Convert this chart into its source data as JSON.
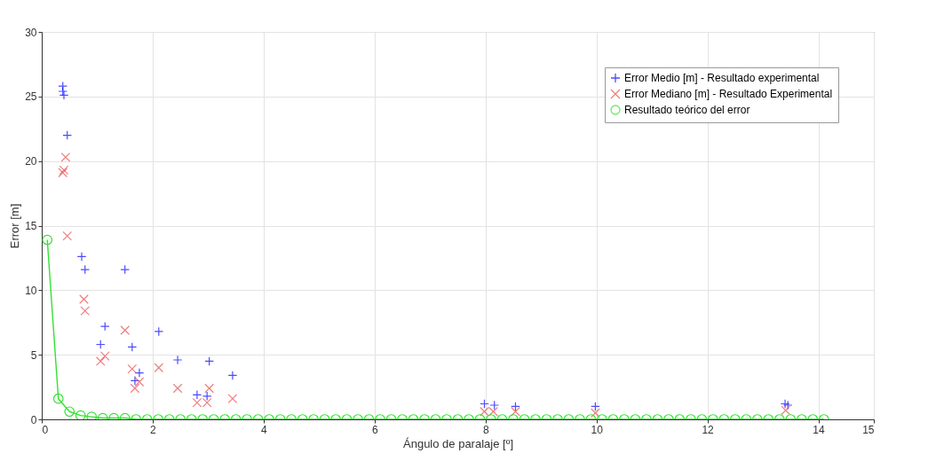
{
  "chart_data": {
    "type": "scatter",
    "xlabel": "Ángulo de paralaje [º]",
    "ylabel": "Error [m]",
    "xlim": [
      0,
      15
    ],
    "xticks": [
      0,
      2,
      4,
      6,
      8,
      10,
      12,
      14,
      15
    ],
    "ylim": [
      0,
      30
    ],
    "yticks": [
      0,
      5,
      10,
      15,
      20,
      25,
      30
    ],
    "grid": true,
    "legend": "top right",
    "series": [
      {
        "name": "Error Medio [m] - Resultado experimental",
        "color": "#0000ff",
        "marker": "cross",
        "x": [
          0.38,
          0.38,
          0.4,
          0.46,
          0.72,
          0.78,
          1.5,
          1.14,
          1.06,
          1.63,
          1.76,
          1.68,
          2.11,
          2.45,
          3.02,
          3.44,
          2.8,
          2.98,
          7.98,
          8.16,
          8.54,
          9.98,
          13.4,
          13.45
        ],
        "values": [
          25.8,
          25.4,
          25.1,
          22.0,
          12.6,
          11.6,
          11.6,
          7.2,
          5.8,
          5.6,
          3.6,
          3.0,
          6.8,
          4.6,
          4.5,
          3.4,
          1.9,
          1.8,
          1.2,
          1.1,
          1.0,
          1.0,
          1.2,
          1.1
        ]
      },
      {
        "name": "Error Mediano [m] - Resultado Experimental",
        "color": "#e8474a",
        "marker": "x",
        "x": [
          0.43,
          0.38,
          0.4,
          0.46,
          0.76,
          0.78,
          1.5,
          1.14,
          1.06,
          1.63,
          2.11,
          1.76,
          1.68,
          2.45,
          3.02,
          3.44,
          2.8,
          2.98,
          7.98,
          8.14,
          8.54,
          9.98,
          13.41
        ],
        "values": [
          20.3,
          19.1,
          19.3,
          14.2,
          9.3,
          8.4,
          6.9,
          4.9,
          4.5,
          3.9,
          4.0,
          2.9,
          2.4,
          2.4,
          2.4,
          1.6,
          1.3,
          1.3,
          0.6,
          0.6,
          0.6,
          0.5,
          0.7
        ]
      },
      {
        "name": "Resultado teórico del error",
        "type": "line",
        "color": "#33e033",
        "marker": "circle",
        "line_style": "solid",
        "x": [
          0.1,
          0.3,
          0.5,
          0.7,
          0.9,
          1.1,
          1.3,
          1.5,
          1.7,
          1.9,
          2.1,
          2.3,
          2.5,
          2.7,
          2.9,
          3.1,
          3.3,
          3.5,
          3.7,
          3.9,
          4.1,
          4.3,
          4.5,
          4.7,
          4.9,
          5.1,
          5.3,
          5.5,
          5.7,
          5.9,
          6.1,
          6.3,
          6.5,
          6.7,
          6.9,
          7.1,
          7.3,
          7.5,
          7.7,
          7.9,
          8.1,
          8.3,
          8.5,
          8.7,
          8.9,
          9.1,
          9.3,
          9.5,
          9.7,
          9.9,
          10.1,
          10.3,
          10.5,
          10.7,
          10.9,
          11.1,
          11.3,
          11.5,
          11.7,
          11.9,
          12.1,
          12.3,
          12.5,
          12.7,
          12.9,
          13.1,
          13.3,
          13.5,
          13.7,
          13.9,
          14.1
        ],
        "values": [
          13.9,
          1.6,
          0.6,
          0.3,
          0.2,
          0.1,
          0.1,
          0.1,
          0.0,
          0.0,
          0.0,
          0.0,
          0.0,
          0.0,
          0.0,
          0.0,
          0.0,
          0.0,
          0.0,
          0.0,
          0.0,
          0.0,
          0.0,
          0.0,
          0.0,
          0.0,
          0.0,
          0.0,
          0.0,
          0.0,
          0.0,
          0.0,
          0.0,
          0.0,
          0.0,
          0.0,
          0.0,
          0.0,
          0.0,
          0.0,
          0.0,
          0.0,
          0.0,
          0.0,
          0.0,
          0.0,
          0.0,
          0.0,
          0.0,
          0.0,
          0.0,
          0.0,
          0.0,
          0.0,
          0.0,
          0.0,
          0.0,
          0.0,
          0.0,
          0.0,
          0.0,
          0.0,
          0.0,
          0.0,
          0.0,
          0.0,
          0.0,
          0.0,
          0.0,
          0.0,
          0.0
        ]
      }
    ]
  }
}
